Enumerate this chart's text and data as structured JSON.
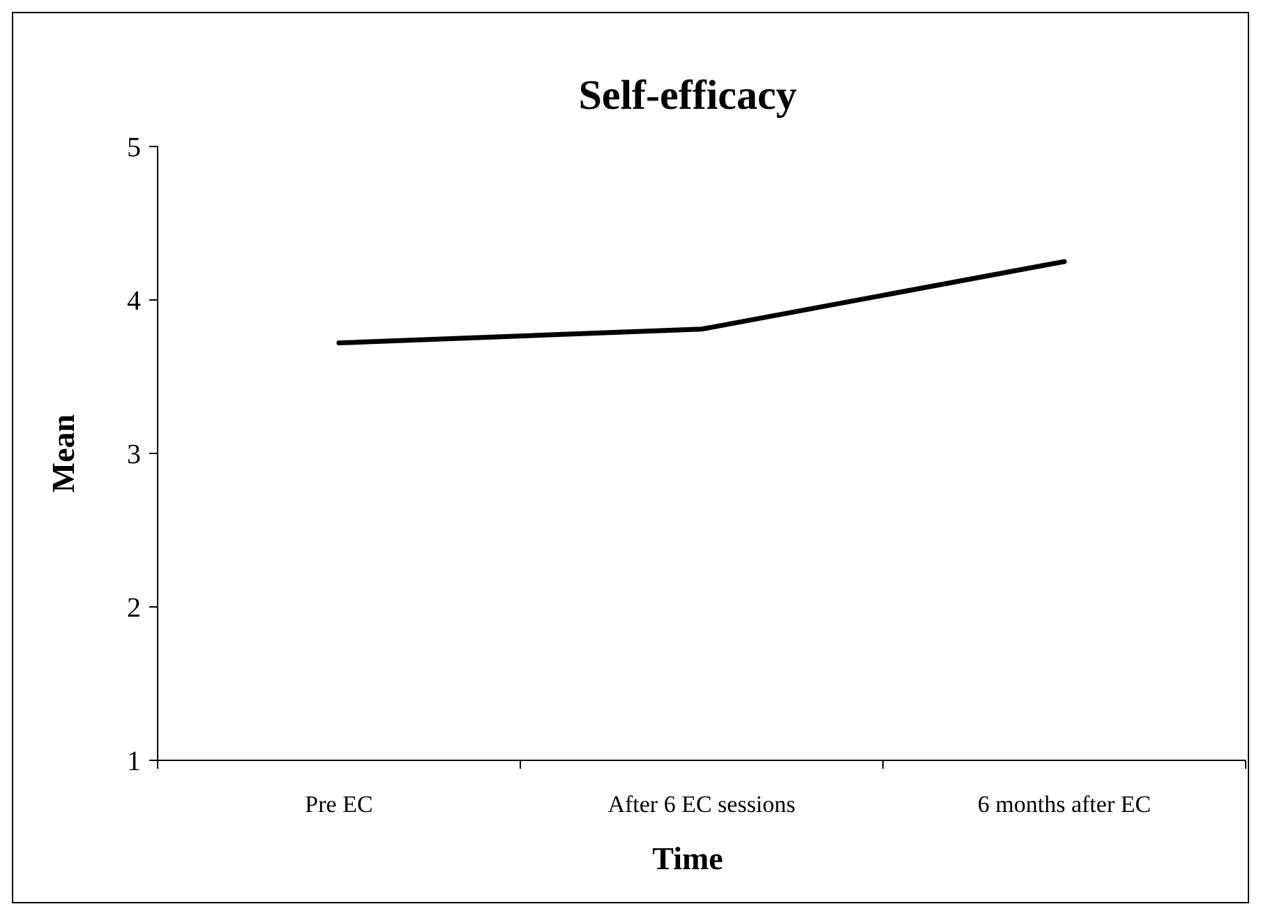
{
  "chart_data": {
    "type": "line",
    "title": "Self-efficacy",
    "xlabel": "Time",
    "ylabel": "Mean",
    "categories": [
      "Pre EC",
      "After 6 EC sessions",
      "6 months after EC"
    ],
    "series": [
      {
        "color": "#000000",
        "values": [
          3.72,
          3.81,
          4.25
        ]
      }
    ],
    "ylim": [
      1,
      5
    ],
    "yticks": [
      1,
      2,
      3,
      4,
      5
    ],
    "grid": false,
    "marker": "none",
    "line_style": "solid"
  }
}
